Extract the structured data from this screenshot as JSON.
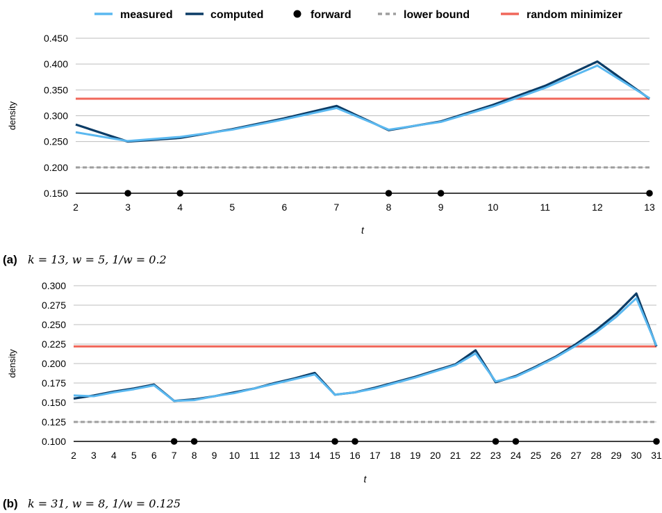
{
  "legend": [
    {
      "label": "measured",
      "kind": "line",
      "color": "#5AB8F0"
    },
    {
      "label": "computed",
      "kind": "line",
      "color": "#0B3C66"
    },
    {
      "label": "forward",
      "kind": "dot",
      "color": "#000000"
    },
    {
      "label": "lower bound",
      "kind": "dash",
      "color": "#9E9E9E"
    },
    {
      "label": "random minimizer",
      "kind": "line",
      "color": "#F0675A"
    }
  ],
  "chart_data": [
    {
      "type": "line",
      "caption_tag": "(a)",
      "caption": "k = 13, w = 5, 1/w = 0.2",
      "xlabel": "t",
      "ylabel": "density",
      "x": [
        2,
        3,
        4,
        5,
        6,
        7,
        8,
        9,
        10,
        11,
        12,
        13
      ],
      "ylim": [
        0.15,
        0.45
      ],
      "yticks": [
        "0.150",
        "0.200",
        "0.250",
        "0.300",
        "0.350",
        "0.400",
        "0.450"
      ],
      "series": [
        {
          "name": "computed",
          "color": "#0B3C66",
          "values": [
            0.283,
            0.25,
            0.257,
            0.274,
            0.295,
            0.319,
            0.272,
            0.289,
            0.321,
            0.358,
            0.405,
            0.333
          ]
        },
        {
          "name": "measured",
          "color": "#5AB8F0",
          "values": [
            0.268,
            0.251,
            0.259,
            0.273,
            0.293,
            0.315,
            0.273,
            0.288,
            0.318,
            0.354,
            0.397,
            0.334
          ]
        },
        {
          "name": "lower bound",
          "color": "#9E9E9E",
          "constant": 0.2
        },
        {
          "name": "random minimizer",
          "color": "#F0675A",
          "constant": 0.333
        }
      ],
      "forward": [
        3,
        4,
        8,
        9,
        13
      ],
      "grid": true
    },
    {
      "type": "line",
      "caption_tag": "(b)",
      "caption": "k = 31, w = 8, 1/w = 0.125",
      "xlabel": "t",
      "ylabel": "density",
      "x": [
        2,
        3,
        4,
        5,
        6,
        7,
        8,
        9,
        10,
        11,
        12,
        13,
        14,
        15,
        16,
        17,
        18,
        19,
        20,
        21,
        22,
        23,
        24,
        25,
        26,
        27,
        28,
        29,
        30,
        31
      ],
      "ylim": [
        0.1,
        0.3
      ],
      "yticks": [
        "0.100",
        "0.125",
        "0.150",
        "0.175",
        "0.200",
        "0.225",
        "0.250",
        "0.275",
        "0.300"
      ],
      "series": [
        {
          "name": "computed",
          "color": "#0B3C66",
          "values": [
            0.155,
            0.159,
            0.164,
            0.168,
            0.173,
            0.152,
            0.154,
            0.158,
            0.163,
            0.168,
            0.175,
            0.181,
            0.188,
            0.16,
            0.163,
            0.169,
            0.176,
            0.183,
            0.191,
            0.199,
            0.217,
            0.176,
            0.184,
            0.196,
            0.209,
            0.225,
            0.243,
            0.264,
            0.29,
            0.222
          ]
        },
        {
          "name": "measured",
          "color": "#5AB8F0",
          "values": [
            0.159,
            0.158,
            0.163,
            0.167,
            0.172,
            0.152,
            0.153,
            0.158,
            0.162,
            0.168,
            0.174,
            0.18,
            0.186,
            0.16,
            0.163,
            0.168,
            0.175,
            0.182,
            0.19,
            0.198,
            0.213,
            0.177,
            0.183,
            0.195,
            0.208,
            0.223,
            0.24,
            0.26,
            0.284,
            0.223
          ]
        },
        {
          "name": "lower bound",
          "color": "#9E9E9E",
          "constant": 0.125
        },
        {
          "name": "random minimizer",
          "color": "#F0675A",
          "constant": 0.222
        }
      ],
      "forward": [
        7,
        8,
        15,
        16,
        23,
        24,
        31
      ],
      "grid": true
    }
  ]
}
